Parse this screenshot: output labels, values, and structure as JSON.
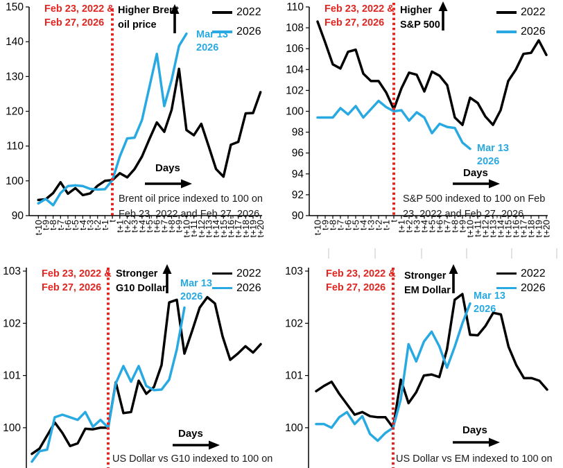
{
  "colors": {
    "series_2022_black": "#000000",
    "series_2026_cyan": "#29a9e1",
    "event_marker_red": "#e12520",
    "caption_gray": "#1a1a1a",
    "minor_tick_gray": "#d9d9d9"
  },
  "x_tick_labels": [
    "t-10",
    "t-9",
    "t-8",
    "t-7",
    "t-6",
    "t-5",
    "t-4",
    "t-3",
    "t-2",
    "t-1",
    "t",
    "t+1",
    "t+2",
    "t+3",
    "t+4",
    "t+5",
    "t+6",
    "t+7",
    "t+8",
    "t+9",
    "t+10",
    "t+11",
    "t+12",
    "t+13",
    "t+14",
    "t+15",
    "t+16",
    "t+17",
    "t+18",
    "t+19",
    "t+20"
  ],
  "chart_data": [
    {
      "type": "line",
      "name": "brent-oil-price",
      "event_dates": [
        "Feb 23, 2022 &",
        "Feb 27, 2026"
      ],
      "title_direction": [
        "Higher Brent",
        "oil price"
      ],
      "endpoint_date": [
        "Mar 13",
        "2026"
      ],
      "days_axis_label": "Days",
      "caption": [
        "Brent oil price indexed to 100 on",
        "Feb 23, 2022 and Feb 27, 2026"
      ],
      "legend": [
        "2022",
        "2026"
      ],
      "ylim": [
        90,
        150
      ],
      "y_ticks": [
        150,
        140,
        130,
        120,
        110,
        100,
        90
      ],
      "series": [
        {
          "name": "2022",
          "color": "#000000",
          "values": [
            94.5,
            94.7,
            96.5,
            99.6,
            96.3,
            97.9,
            95.9,
            96.4,
            98.6,
            100.0,
            100.2,
            102.2,
            101.0,
            103.4,
            107.0,
            112.0,
            116.8,
            114.1,
            120.4,
            132.2,
            114.6,
            113.1,
            116.4,
            110.0,
            103.4,
            101.2,
            110.4,
            111.2,
            119.4,
            119.5,
            125.5
          ]
        },
        {
          "name": "2026",
          "color": "#29a9e1",
          "values": [
            93.5,
            94.8,
            93.0,
            96.5,
            98.5,
            98.7,
            98.5,
            97.7,
            97.5,
            97.6,
            100.2,
            107.0,
            112.2,
            112.4,
            117.5,
            127.0,
            136.5,
            121.5,
            129.0,
            138.8,
            142.3
          ]
        }
      ]
    },
    {
      "type": "line",
      "name": "sp500",
      "event_dates": [
        "Feb 23, 2022 &",
        "Feb 27, 2026"
      ],
      "title_direction": [
        "Higher",
        "S&P 500"
      ],
      "endpoint_date": [
        "Mar 13",
        "2026"
      ],
      "days_axis_label": "Days",
      "caption": [
        "S&P 500 indexed to 100 on Feb",
        "23, 2022 and Feb 27, 2026"
      ],
      "legend": [
        "2022",
        "2026"
      ],
      "ylim": [
        90,
        110
      ],
      "y_ticks": [
        110,
        108,
        106,
        104,
        102,
        100,
        98,
        96,
        94,
        92,
        90
      ],
      "series": [
        {
          "name": "2022",
          "color": "#000000",
          "values": [
            108.6,
            106.6,
            104.5,
            104.1,
            105.7,
            105.9,
            103.6,
            102.9,
            102.9,
            101.8,
            100.2,
            102.2,
            103.7,
            103.5,
            101.9,
            103.8,
            103.4,
            102.5,
            99.4,
            98.7,
            101.3,
            100.8,
            99.5,
            98.7,
            100.1,
            102.9,
            104.0,
            105.5,
            105.6,
            106.8,
            105.4
          ]
        },
        {
          "name": "2026",
          "color": "#29a9e1",
          "values": [
            99.4,
            99.4,
            99.4,
            100.3,
            99.7,
            100.5,
            99.4,
            100.2,
            101.0,
            100.4,
            100.0,
            100.1,
            99.1,
            99.9,
            99.4,
            97.9,
            98.8,
            98.5,
            98.4,
            97.0,
            96.4
          ]
        }
      ]
    },
    {
      "type": "line",
      "name": "us-dollar-vs-g10",
      "event_dates": [
        "Feb 23, 2022 &",
        "Feb 27, 2026"
      ],
      "title_direction": [
        "Stronger",
        "G10 Dollar"
      ],
      "endpoint_date": [
        "Mar 13",
        "2026"
      ],
      "days_axis_label": "Days",
      "caption": [
        "US Dollar vs G10 indexed to 100 on"
      ],
      "legend": [
        "2022",
        "2026"
      ],
      "ylim": [
        99.1,
        103
      ],
      "y_ticks": [
        103,
        102,
        101,
        100
      ],
      "series": [
        {
          "name": "2022",
          "color": "#000000",
          "values": [
            99.5,
            99.6,
            99.85,
            100.1,
            99.9,
            99.65,
            99.7,
            99.98,
            99.97,
            100.0,
            100.0,
            100.87,
            100.28,
            100.3,
            100.9,
            100.65,
            100.78,
            101.2,
            102.4,
            102.45,
            101.42,
            101.85,
            102.3,
            102.5,
            102.38,
            101.75,
            101.3,
            101.42,
            101.56,
            101.44,
            101.6
          ]
        },
        {
          "name": "2026",
          "color": "#29a9e1",
          "values": [
            99.35,
            99.55,
            99.58,
            100.2,
            100.25,
            100.2,
            100.15,
            100.3,
            100.02,
            100.15,
            100.0,
            100.85,
            101.18,
            100.88,
            101.18,
            100.8,
            100.72,
            100.73,
            100.92,
            101.5,
            102.3
          ]
        }
      ]
    },
    {
      "type": "line",
      "name": "us-dollar-vs-em",
      "event_dates": [
        "Feb 23, 2022 &",
        "Feb 27, 2026"
      ],
      "title_direction": [
        "Stronger",
        "EM Dollar"
      ],
      "endpoint_date": [
        "Mar 13",
        "2026"
      ],
      "days_axis_label": "Days",
      "caption": [
        "US Dollar vs EM indexed to 100 on"
      ],
      "legend": [
        "2022",
        "2026"
      ],
      "ylim": [
        99.1,
        103
      ],
      "y_ticks": [
        103,
        102,
        101,
        100
      ],
      "series": [
        {
          "name": "2022",
          "color": "#000000",
          "values": [
            100.7,
            100.8,
            100.88,
            100.65,
            100.45,
            100.25,
            100.3,
            100.22,
            100.2,
            100.2,
            100.0,
            100.92,
            100.47,
            100.68,
            101.0,
            101.02,
            100.97,
            101.5,
            102.45,
            102.56,
            101.78,
            101.77,
            101.95,
            102.2,
            102.17,
            101.55,
            101.2,
            100.95,
            100.95,
            100.9,
            100.73
          ]
        },
        {
          "name": "2026",
          "color": "#29a9e1",
          "values": [
            100.07,
            100.07,
            100.0,
            100.2,
            100.3,
            100.07,
            100.22,
            99.88,
            99.75,
            99.9,
            100.0,
            100.55,
            101.6,
            101.27,
            101.65,
            101.84,
            101.56,
            101.15,
            101.55,
            102.0,
            102.38
          ]
        }
      ]
    }
  ]
}
